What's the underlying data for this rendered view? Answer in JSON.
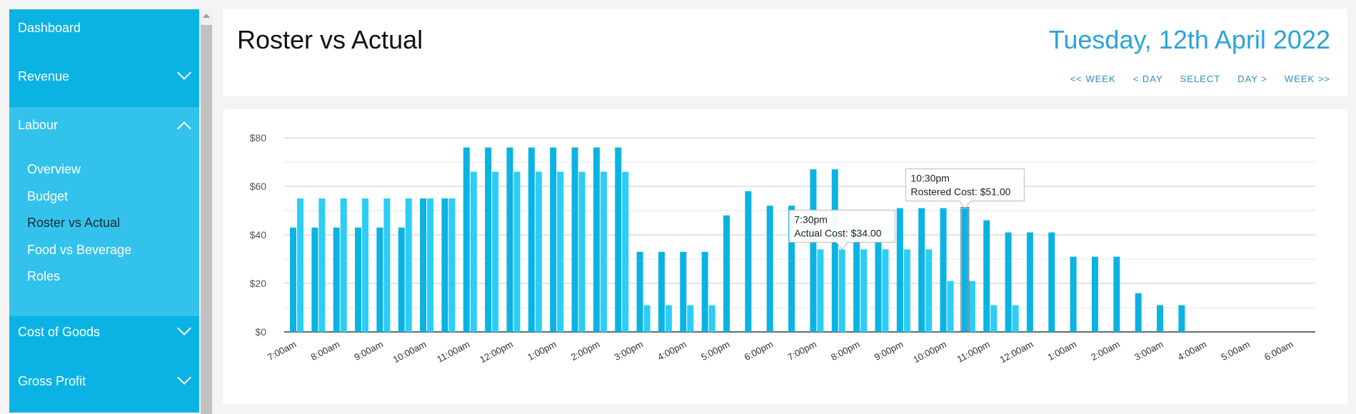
{
  "sidebar": {
    "dashboard": "Dashboard",
    "revenue": "Revenue",
    "labour": "Labour",
    "labour_items": [
      "Overview",
      "Budget",
      "Roster vs Actual",
      "Food vs Beverage",
      "Roles"
    ],
    "cost_of_goods": "Cost of Goods",
    "gross_profit": "Gross Profit"
  },
  "header": {
    "title": "Roster vs Actual",
    "date": "Tuesday, 12th April 2022",
    "nav": [
      "<< WEEK",
      "< DAY",
      "SELECT",
      "DAY >",
      "WEEK >>"
    ]
  },
  "colors": {
    "rostered": "#0ab3e4",
    "actual": "#2ccdf6",
    "accent": "#2aa4d8"
  },
  "chart_data": {
    "type": "bar",
    "xlabel": "",
    "ylabel": "",
    "ylim": [
      0,
      80
    ],
    "yticks": [
      "$0",
      "$20",
      "$40",
      "$60",
      "$80"
    ],
    "hour_labels": [
      "7:00am",
      "8:00am",
      "9:00am",
      "10:00am",
      "11:00am",
      "12:00pm",
      "1:00pm",
      "2:00pm",
      "3:00pm",
      "4:00pm",
      "5:00pm",
      "6:00pm",
      "7:00pm",
      "8:00pm",
      "9:00pm",
      "10:00pm",
      "11:00pm",
      "12:00am",
      "1:00am",
      "2:00am",
      "3:00am",
      "4:00am",
      "5:00am",
      "6:00am"
    ],
    "series": [
      {
        "values": [
          43,
          43,
          43,
          43,
          43,
          43,
          55,
          55,
          76,
          76,
          76,
          76,
          76,
          76,
          76,
          76,
          33,
          33,
          33,
          33,
          48,
          58,
          52,
          52,
          67,
          67,
          44,
          44,
          51,
          51,
          51,
          51,
          46,
          41,
          41,
          41,
          31,
          31,
          31,
          16,
          11,
          11,
          0,
          0,
          0,
          0,
          0,
          0
        ]
      },
      {
        "values": [
          55,
          55,
          55,
          55,
          55,
          55,
          55,
          55,
          66,
          66,
          66,
          66,
          66,
          66,
          66,
          66,
          11,
          11,
          11,
          11,
          0,
          0,
          0,
          0,
          34,
          34,
          34,
          34,
          34,
          34,
          21,
          21,
          11,
          11,
          0,
          0,
          0,
          0,
          0,
          0,
          0,
          0,
          0,
          0,
          0,
          0,
          0,
          0
        ]
      }
    ],
    "tooltips": [
      {
        "time": "7:30pm",
        "text": "Actual Cost: $34.00"
      },
      {
        "time": "10:30pm",
        "text": "Rostered Cost: $51.00"
      }
    ]
  }
}
